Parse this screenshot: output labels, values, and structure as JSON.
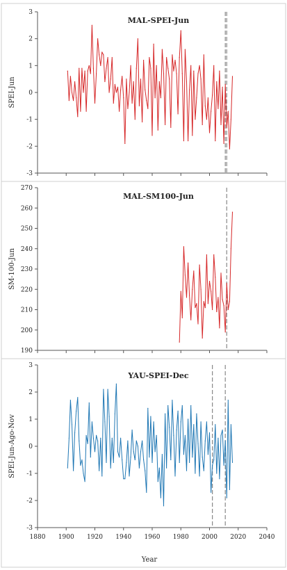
{
  "xlabel": "Year",
  "xlim": [
    1880,
    2040
  ],
  "xticks": [
    1880,
    1900,
    1920,
    1940,
    1960,
    1980,
    2000,
    2020,
    2040
  ],
  "chart_data": [
    {
      "type": "line",
      "title": "MAL-SPEI-Jun",
      "ylabel": "SPEI-Jun",
      "ylim": [
        -3,
        3
      ],
      "yticks": [
        -3,
        -2,
        -1,
        0,
        1,
        2,
        3
      ],
      "color": "#d62728",
      "vlines": [
        2011,
        2012
      ],
      "series": [
        {
          "x": [
            1901,
            1902,
            1903,
            1904,
            1905,
            1906,
            1907,
            1908,
            1909,
            1910,
            1911,
            1912,
            1913,
            1914,
            1915,
            1916,
            1917,
            1918,
            1919,
            1920,
            1921,
            1922,
            1923,
            1924,
            1925,
            1926,
            1927,
            1928,
            1929,
            1930,
            1931,
            1932,
            1933,
            1934,
            1935,
            1936,
            1937,
            1938,
            1939,
            1940,
            1941,
            1942,
            1943,
            1944,
            1945,
            1946,
            1947,
            1948,
            1949,
            1950,
            1951,
            1952,
            1953,
            1954,
            1955,
            1956,
            1957,
            1958,
            1959,
            1960,
            1961,
            1962,
            1963,
            1964,
            1965,
            1966,
            1967,
            1968,
            1969,
            1970,
            1971,
            1972,
            1973,
            1974,
            1975,
            1976,
            1977,
            1978,
            1979,
            1980,
            1981,
            1982,
            1983,
            1984,
            1985,
            1986,
            1987,
            1988,
            1989,
            1990,
            1991,
            1992,
            1993,
            1994,
            1995,
            1996,
            1997,
            1998,
            1999,
            2000,
            2001,
            2002,
            2003,
            2004,
            2005,
            2006,
            2007,
            2008,
            2009,
            2010,
            2011,
            2012,
            2013,
            2014,
            2015,
            2016
          ],
          "values": [
            0.8,
            -0.3,
            0.6,
            0.0,
            -0.3,
            0.4,
            -0.2,
            -0.9,
            0.9,
            -0.7,
            0.9,
            0.0,
            0.8,
            -0.7,
            0.8,
            1.0,
            0.7,
            2.5,
            0.9,
            -0.4,
            0.7,
            2.0,
            1.4,
            1.0,
            1.5,
            1.4,
            0.4,
            0.9,
            1.3,
            0.0,
            0.5,
            1.3,
            -0.4,
            0.3,
            0.0,
            0.2,
            -0.7,
            0.1,
            0.6,
            -0.2,
            -1.9,
            0.5,
            -0.6,
            0.0,
            1.0,
            -0.4,
            0.4,
            -1.0,
            0.9,
            2.0,
            -0.5,
            0.5,
            -1.1,
            1.2,
            0.1,
            -0.3,
            -0.6,
            1.3,
            0.9,
            -1.6,
            1.8,
            -0.2,
            1.0,
            -1.4,
            0.4,
            -0.2,
            1.6,
            0.7,
            -1.2,
            1.3,
            0.9,
            0.5,
            -1.3,
            1.4,
            0.8,
            1.2,
            0.7,
            -0.8,
            1.3,
            2.3,
            0.7,
            -1.8,
            1.6,
            0.4,
            -1.8,
            0.1,
            1.0,
            -1.6,
            0.8,
            -1.0,
            -0.2,
            0.7,
            1.0,
            0.5,
            -1.2,
            1.4,
            -0.5,
            -1.0,
            -0.2,
            -1.5,
            -0.7,
            -0.1,
            1.0,
            -1.8,
            0.4,
            -0.6,
            0.8,
            -1.2,
            0.2,
            -1.9,
            0.3,
            -1.3,
            -0.7,
            -2.1,
            -1.0,
            0.6
          ]
        }
      ]
    },
    {
      "type": "line",
      "title": "MAL-SM100-Jun",
      "ylabel": "SM-100-Jun",
      "ylim": [
        190,
        270
      ],
      "yticks": [
        190,
        200,
        210,
        220,
        230,
        240,
        250,
        260,
        270
      ],
      "color": "#d62728",
      "vlines": [
        2012
      ],
      "series": [
        {
          "x": [
            1979,
            1980,
            1981,
            1982,
            1983,
            1984,
            1985,
            1986,
            1987,
            1988,
            1989,
            1990,
            1991,
            1992,
            1993,
            1994,
            1995,
            1996,
            1997,
            1998,
            1999,
            2000,
            2001,
            2002,
            2003,
            2004,
            2005,
            2006,
            2007,
            2008,
            2009,
            2010,
            2011,
            2012,
            2013,
            2014,
            2015,
            2016
          ],
          "values": [
            194,
            219,
            206,
            241,
            227,
            216,
            233,
            217,
            205,
            220,
            229,
            211,
            213,
            203,
            232,
            220,
            196,
            214,
            211,
            237,
            213,
            224,
            219,
            210,
            237,
            226,
            209,
            216,
            201,
            228,
            215,
            212,
            199,
            223,
            210,
            214,
            240,
            258
          ]
        }
      ]
    },
    {
      "type": "line",
      "title": "YAU-SPEI-Dec",
      "ylabel": "SPEI-Jun-Ago-Nov",
      "ylim": [
        -3,
        3
      ],
      "yticks": [
        -3,
        -2,
        -1,
        0,
        1,
        2,
        3
      ],
      "color": "#1f77b4",
      "vlines": [
        2002,
        2011
      ],
      "series": [
        {
          "x": [
            1901,
            1902,
            1903,
            1904,
            1905,
            1906,
            1907,
            1908,
            1909,
            1910,
            1911,
            1912,
            1913,
            1914,
            1915,
            1916,
            1917,
            1918,
            1919,
            1920,
            1921,
            1922,
            1923,
            1924,
            1925,
            1926,
            1927,
            1928,
            1929,
            1930,
            1931,
            1932,
            1933,
            1934,
            1935,
            1936,
            1937,
            1938,
            1939,
            1940,
            1941,
            1942,
            1943,
            1944,
            1945,
            1946,
            1947,
            1948,
            1949,
            1950,
            1951,
            1952,
            1953,
            1954,
            1955,
            1956,
            1957,
            1958,
            1959,
            1960,
            1961,
            1962,
            1963,
            1964,
            1965,
            1966,
            1967,
            1968,
            1969,
            1970,
            1971,
            1972,
            1973,
            1974,
            1975,
            1976,
            1977,
            1978,
            1979,
            1980,
            1981,
            1982,
            1983,
            1984,
            1985,
            1986,
            1987,
            1988,
            1989,
            1990,
            1991,
            1992,
            1993,
            1994,
            1995,
            1996,
            1997,
            1998,
            1999,
            2000,
            2001,
            2002,
            2003,
            2004,
            2005,
            2006,
            2007,
            2008,
            2009,
            2010,
            2011,
            2012,
            2013,
            2014,
            2015,
            2016
          ],
          "values": [
            -0.8,
            0.3,
            1.7,
            0.8,
            -0.9,
            0.5,
            1.3,
            1.8,
            0.2,
            -0.7,
            -0.5,
            -1.0,
            -1.3,
            0.4,
            0.1,
            1.6,
            -0.4,
            0.9,
            0.3,
            -0.2,
            0.4,
            0.2,
            -0.9,
            0.3,
            -1.1,
            2.1,
            0.9,
            -0.6,
            2.1,
            1.1,
            -0.8,
            0.3,
            -0.6,
            1.2,
            2.3,
            -0.2,
            -0.4,
            0.3,
            -0.5,
            -1.2,
            -1.2,
            -0.6,
            0.2,
            -1.1,
            -0.4,
            0.6,
            -0.2,
            -0.5,
            0.2,
            0.0,
            -0.8,
            -0.2,
            0.2,
            -0.5,
            -0.9,
            -1.7,
            1.4,
            -0.4,
            1.1,
            -0.6,
            0.9,
            -0.2,
            0.4,
            -1.3,
            -0.8,
            -1.9,
            -0.3,
            -2.2,
            1.2,
            -0.8,
            1.5,
            0.7,
            -0.5,
            1.7,
            0.4,
            -1.1,
            0.6,
            1.3,
            -0.6,
            0.9,
            1.5,
            -0.3,
            0.4,
            -0.9,
            1.0,
            -0.6,
            1.5,
            -0.4,
            0.8,
            -1.0,
            1.2,
            0.1,
            -1.1,
            0.9,
            -0.4,
            -0.9,
            0.2,
            0.9,
            -0.3,
            0.5,
            -1.7,
            -0.7,
            -0.5,
            0.8,
            -1.0,
            0.3,
            -1.2,
            0.4,
            0.6,
            -0.7,
            0.2,
            -1.9,
            1.7,
            -1.6,
            0.8,
            -0.6
          ]
        }
      ]
    }
  ]
}
